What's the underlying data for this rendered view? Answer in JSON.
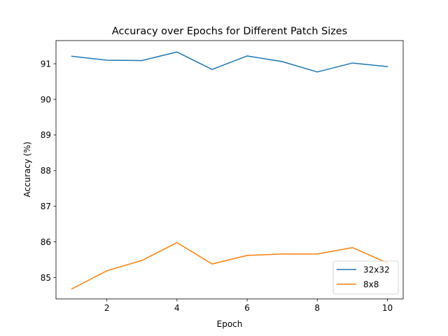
{
  "chart_data": {
    "type": "line",
    "title": "Accuracy over Epochs for Different Patch Sizes",
    "xlabel": "Epoch",
    "ylabel": "Accuracy (%)",
    "x": [
      1,
      2,
      3,
      4,
      5,
      6,
      7,
      8,
      9,
      10
    ],
    "xlim": [
      0.55,
      10.45
    ],
    "ylim": [
      84.4,
      91.65
    ],
    "xticks": [
      2,
      4,
      6,
      8,
      10
    ],
    "xtick_labels": [
      "2",
      "4",
      "6",
      "8",
      "10"
    ],
    "yticks": [
      85,
      86,
      87,
      88,
      89,
      90,
      91
    ],
    "ytick_labels": [
      "85",
      "86",
      "87",
      "88",
      "89",
      "90",
      "91"
    ],
    "grid": false,
    "legend_position": "lower-right",
    "series": [
      {
        "name": "32x32",
        "color": "#1f77b4",
        "values": [
          91.21,
          91.1,
          91.09,
          91.33,
          90.84,
          91.22,
          91.06,
          90.77,
          91.02,
          90.92
        ]
      },
      {
        "name": "8x8",
        "color": "#ff7f0e",
        "values": [
          84.68,
          85.19,
          85.48,
          85.98,
          85.38,
          85.62,
          85.66,
          85.66,
          85.84,
          85.41
        ]
      }
    ]
  }
}
